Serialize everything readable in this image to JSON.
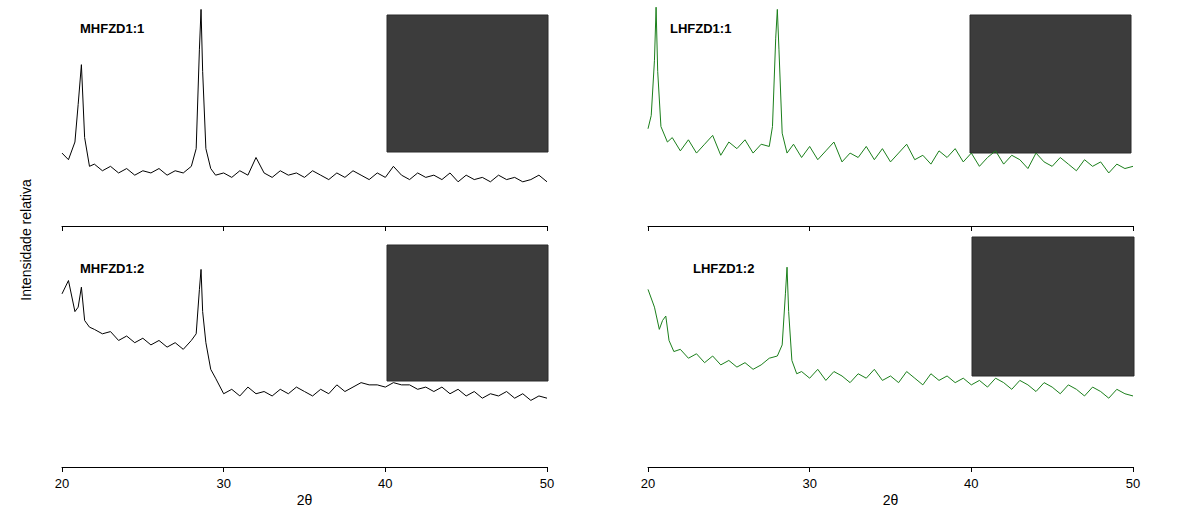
{
  "ylabel": "Intensidade relativa",
  "chart_data": [
    {
      "type": "line",
      "title": "MHFZD1:1",
      "color": "#000000",
      "marker": "none",
      "line_style": "solid",
      "grid": false,
      "tick_labels": false,
      "xlim": [
        20,
        50
      ],
      "xticks": [
        20,
        30,
        40,
        50
      ],
      "ylim": [
        0,
        100
      ],
      "x": [
        20,
        20.4,
        20.8,
        21.0,
        21.2,
        21.4,
        21.7,
        22,
        22.5,
        23,
        23.5,
        24,
        24.5,
        25,
        25.5,
        26,
        26.5,
        27,
        27.5,
        28,
        28.3,
        28.5,
        28.6,
        28.7,
        28.9,
        29.2,
        29.5,
        30,
        30.5,
        31,
        31.5,
        32,
        32.5,
        33,
        33.5,
        34,
        34.5,
        35,
        35.5,
        36,
        36.5,
        37,
        37.5,
        38,
        38.5,
        39,
        39.5,
        40,
        40.5,
        41,
        41.5,
        42,
        42.5,
        43,
        43.5,
        44,
        44.5,
        45,
        45.5,
        46,
        46.5,
        47,
        47.5,
        48,
        48.5,
        49,
        49.5,
        50
      ],
      "values": [
        33,
        30,
        38,
        55,
        73,
        40,
        27,
        28,
        25,
        27,
        24,
        26,
        23,
        25,
        24,
        26,
        23,
        25,
        24,
        27,
        35,
        80,
        98,
        70,
        35,
        26,
        23,
        24,
        22,
        25,
        23,
        31,
        24,
        22,
        25,
        23,
        24,
        22,
        25,
        23,
        21,
        24,
        22,
        25,
        23,
        21,
        24,
        22,
        27,
        23,
        21,
        24,
        22,
        23,
        21,
        24,
        20,
        23,
        21,
        22,
        20,
        23,
        21,
        22,
        20,
        21,
        23,
        20
      ]
    },
    {
      "type": "line",
      "title": "LHFZD1:1",
      "color": "#1b7f1b",
      "marker": "none",
      "line_style": "solid",
      "grid": false,
      "tick_labels": false,
      "xlim": [
        20,
        50
      ],
      "xticks": [
        20,
        30,
        40,
        50
      ],
      "ylim": [
        0,
        100
      ],
      "x": [
        20,
        20.2,
        20.4,
        20.5,
        20.6,
        20.8,
        21.2,
        21.5,
        22,
        22.5,
        23,
        23.5,
        24,
        24.5,
        25,
        25.5,
        26,
        26.5,
        27,
        27.5,
        27.7,
        27.9,
        28.0,
        28.1,
        28.3,
        28.6,
        29,
        29.5,
        30,
        30.5,
        31,
        31.5,
        32,
        32.5,
        33,
        33.5,
        34,
        34.5,
        35,
        35.5,
        36,
        36.5,
        37,
        37.5,
        38,
        38.5,
        39,
        39.5,
        40,
        40.5,
        41,
        41.5,
        42,
        42.5,
        43,
        43.5,
        44,
        44.5,
        45,
        45.5,
        46,
        46.5,
        47,
        47.5,
        48,
        48.5,
        49,
        49.5,
        50
      ],
      "values": [
        44,
        50,
        75,
        99,
        70,
        45,
        38,
        40,
        34,
        39,
        33,
        37,
        41,
        32,
        38,
        35,
        39,
        33,
        37,
        36,
        45,
        85,
        98,
        80,
        42,
        33,
        37,
        31,
        36,
        30,
        34,
        38,
        29,
        33,
        31,
        36,
        30,
        35,
        29,
        33,
        37,
        30,
        32,
        28,
        34,
        31,
        35,
        29,
        33,
        27,
        31,
        34,
        28,
        32,
        30,
        26,
        33,
        29,
        27,
        31,
        28,
        25,
        30,
        27,
        29,
        24,
        28,
        26,
        27
      ]
    },
    {
      "type": "line",
      "title": "MHFZD1:2",
      "color": "#000000",
      "marker": "none",
      "line_style": "solid",
      "grid": false,
      "tick_labels": "x",
      "xlabel": "2θ",
      "xlim": [
        20,
        50
      ],
      "xticks": [
        20,
        30,
        40,
        50
      ],
      "ylim": [
        0,
        100
      ],
      "x": [
        20,
        20.4,
        20.8,
        21.0,
        21.2,
        21.4,
        21.7,
        22,
        22.5,
        23,
        23.5,
        24,
        24.5,
        25,
        25.5,
        26,
        26.5,
        27,
        27.5,
        28,
        28.3,
        28.5,
        28.6,
        28.7,
        28.9,
        29.2,
        29.5,
        30,
        30.5,
        31,
        31.5,
        32,
        32.5,
        33,
        33.5,
        34,
        34.5,
        35,
        35.5,
        36,
        36.5,
        37,
        37.5,
        38,
        38.5,
        39,
        39.5,
        40,
        40.5,
        41,
        41.5,
        42,
        42.5,
        43,
        43.5,
        44,
        44.5,
        45,
        45.5,
        46,
        46.5,
        47,
        47.5,
        48,
        48.5,
        49,
        49.5,
        50
      ],
      "values": [
        78,
        84,
        70,
        72,
        81,
        66,
        63,
        62,
        60,
        61,
        57,
        59,
        56,
        58,
        55,
        57,
        54,
        56,
        53,
        57,
        60,
        80,
        89,
        70,
        56,
        44,
        40,
        33,
        35,
        32,
        36,
        33,
        34,
        32,
        35,
        33,
        36,
        34,
        32,
        35,
        33,
        37,
        34,
        36,
        38,
        37,
        37,
        36,
        38,
        37,
        37,
        35,
        36,
        34,
        36,
        33,
        35,
        32,
        34,
        31,
        33,
        32,
        34,
        31,
        33,
        30,
        32,
        31
      ]
    },
    {
      "type": "line",
      "title": "LHFZD1:2",
      "color": "#1b7f1b",
      "marker": "none",
      "line_style": "solid",
      "grid": false,
      "tick_labels": "x",
      "xlabel": "2θ",
      "xlim": [
        20,
        50
      ],
      "xticks": [
        20,
        30,
        40,
        50
      ],
      "ylim": [
        0,
        100
      ],
      "x": [
        20,
        20.4,
        20.7,
        20.9,
        21.1,
        21.3,
        21.6,
        22,
        22.5,
        23,
        23.5,
        24,
        24.5,
        25,
        25.5,
        26,
        26.5,
        27,
        27.5,
        28,
        28.3,
        28.5,
        28.6,
        28.7,
        28.9,
        29.2,
        29.5,
        30,
        30.5,
        31,
        31.5,
        32,
        32.5,
        33,
        33.5,
        34,
        34.5,
        35,
        35.5,
        36,
        36.5,
        37,
        37.5,
        38,
        38.5,
        39,
        39.5,
        40,
        40.5,
        41,
        41.5,
        42,
        42.5,
        43,
        43.5,
        44,
        44.5,
        45,
        45.5,
        46,
        46.5,
        47,
        47.5,
        48,
        48.5,
        49,
        49.5,
        50
      ],
      "values": [
        80,
        72,
        62,
        66,
        68,
        57,
        52,
        53,
        49,
        51,
        47,
        50,
        46,
        48,
        45,
        47,
        44,
        46,
        49,
        50,
        55,
        78,
        90,
        70,
        48,
        42,
        43,
        40,
        44,
        39,
        43,
        41,
        38,
        42,
        40,
        44,
        39,
        41,
        38,
        43,
        40,
        37,
        42,
        39,
        41,
        38,
        40,
        37,
        39,
        36,
        40,
        38,
        35,
        39,
        37,
        34,
        38,
        36,
        33,
        37,
        35,
        32,
        36,
        34,
        31,
        35,
        33,
        32
      ]
    }
  ]
}
